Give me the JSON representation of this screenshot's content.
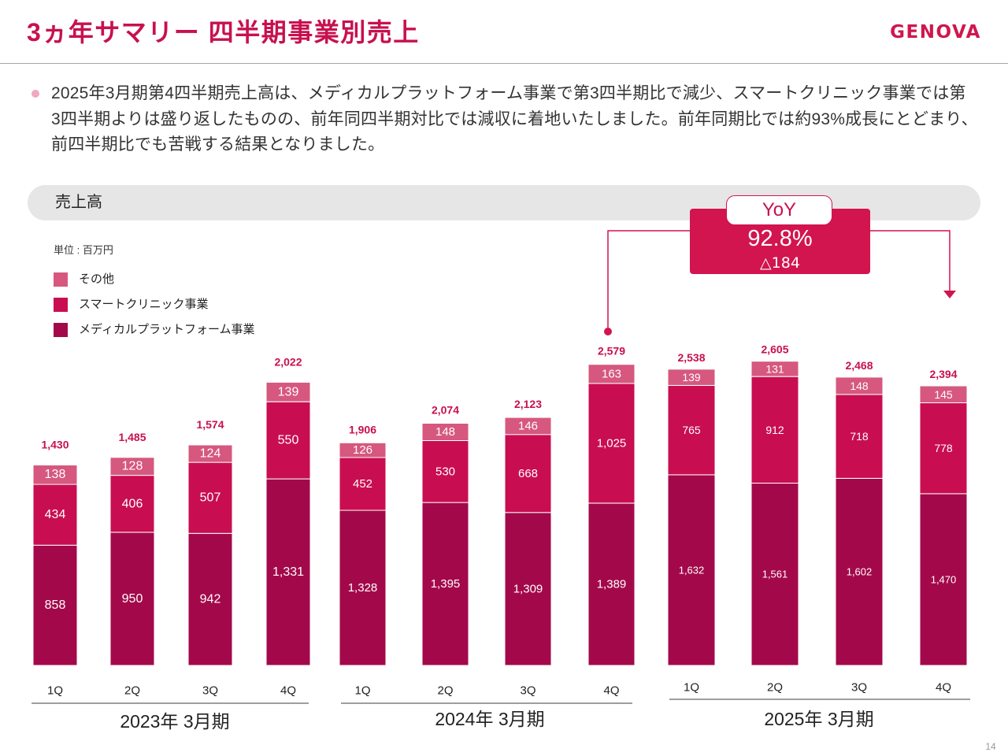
{
  "header": {
    "title": "3ヵ年サマリー 四半期事業別売上",
    "logo": "GENOVA"
  },
  "summary": {
    "lines": [
      "2025年3月期第4四半期売上高は、メディカルプラットフォーム事業で第3四半期比で減少、スマートクリニック事業では第",
      "3四半期よりは盛り返したものの、前年同四半期対比では減収に着地いたしました。前年同期比では約93%成長にとどまり、",
      "前四半期比でも苦戦する結果となりました。"
    ]
  },
  "section": {
    "label": "売上高"
  },
  "unit_label": "単位 : 百万円",
  "yoy": {
    "label": "YoY",
    "rate": "92.8%",
    "change": "△184"
  },
  "page_number": "14",
  "colors": {
    "accent": "#c8104f",
    "callout": "#d2144f"
  },
  "chart_data": [
    {
      "type": "bar",
      "stacked": true,
      "grid": false,
      "legend_position": "top-left",
      "xlabel": "2023年 3月期",
      "categories": [
        "1Q",
        "2Q",
        "3Q",
        "4Q"
      ],
      "ylim": [
        0,
        2500
      ],
      "series": [
        {
          "name": "メディカルプラットフォーム事業",
          "color": "#a3094a",
          "values": [
            858,
            950,
            942,
            1331
          ]
        },
        {
          "name": "スマートクリニック事業",
          "color": "#c80e50",
          "values": [
            434,
            406,
            507,
            550
          ]
        },
        {
          "name": "その他",
          "color": "#d6587f",
          "values": [
            138,
            128,
            124,
            139
          ]
        }
      ],
      "totals": [
        1430,
        1485,
        1574,
        2022
      ]
    },
    {
      "type": "bar",
      "stacked": true,
      "grid": false,
      "xlabel": "2024年 3月期",
      "categories": [
        "1Q",
        "2Q",
        "3Q",
        "4Q"
      ],
      "ylim": [
        0,
        3000
      ],
      "series": [
        {
          "name": "メディカルプラットフォーム事業",
          "color": "#a3094a",
          "values": [
            1328,
            1395,
            1309,
            1389
          ]
        },
        {
          "name": "スマートクリニック事業",
          "color": "#c80e50",
          "values": [
            452,
            530,
            668,
            1025
          ]
        },
        {
          "name": "その他",
          "color": "#d6587f",
          "values": [
            126,
            148,
            146,
            163
          ]
        }
      ],
      "totals": [
        1906,
        2074,
        2123,
        2579
      ]
    },
    {
      "type": "bar",
      "stacked": true,
      "grid": false,
      "xlabel": "2025年 3月期",
      "categories": [
        "1Q",
        "2Q",
        "3Q",
        "4Q"
      ],
      "ylim": [
        0,
        3000
      ],
      "series": [
        {
          "name": "メディカルプラットフォーム事業",
          "color": "#a3094a",
          "values": [
            1632,
            1561,
            1602,
            1470
          ]
        },
        {
          "name": "スマートクリニック事業",
          "color": "#c80e50",
          "values": [
            765,
            912,
            718,
            778
          ]
        },
        {
          "name": "その他",
          "color": "#d6587f",
          "values": [
            139,
            131,
            148,
            145
          ]
        }
      ],
      "totals": [
        2538,
        2605,
        2468,
        2394
      ]
    }
  ]
}
